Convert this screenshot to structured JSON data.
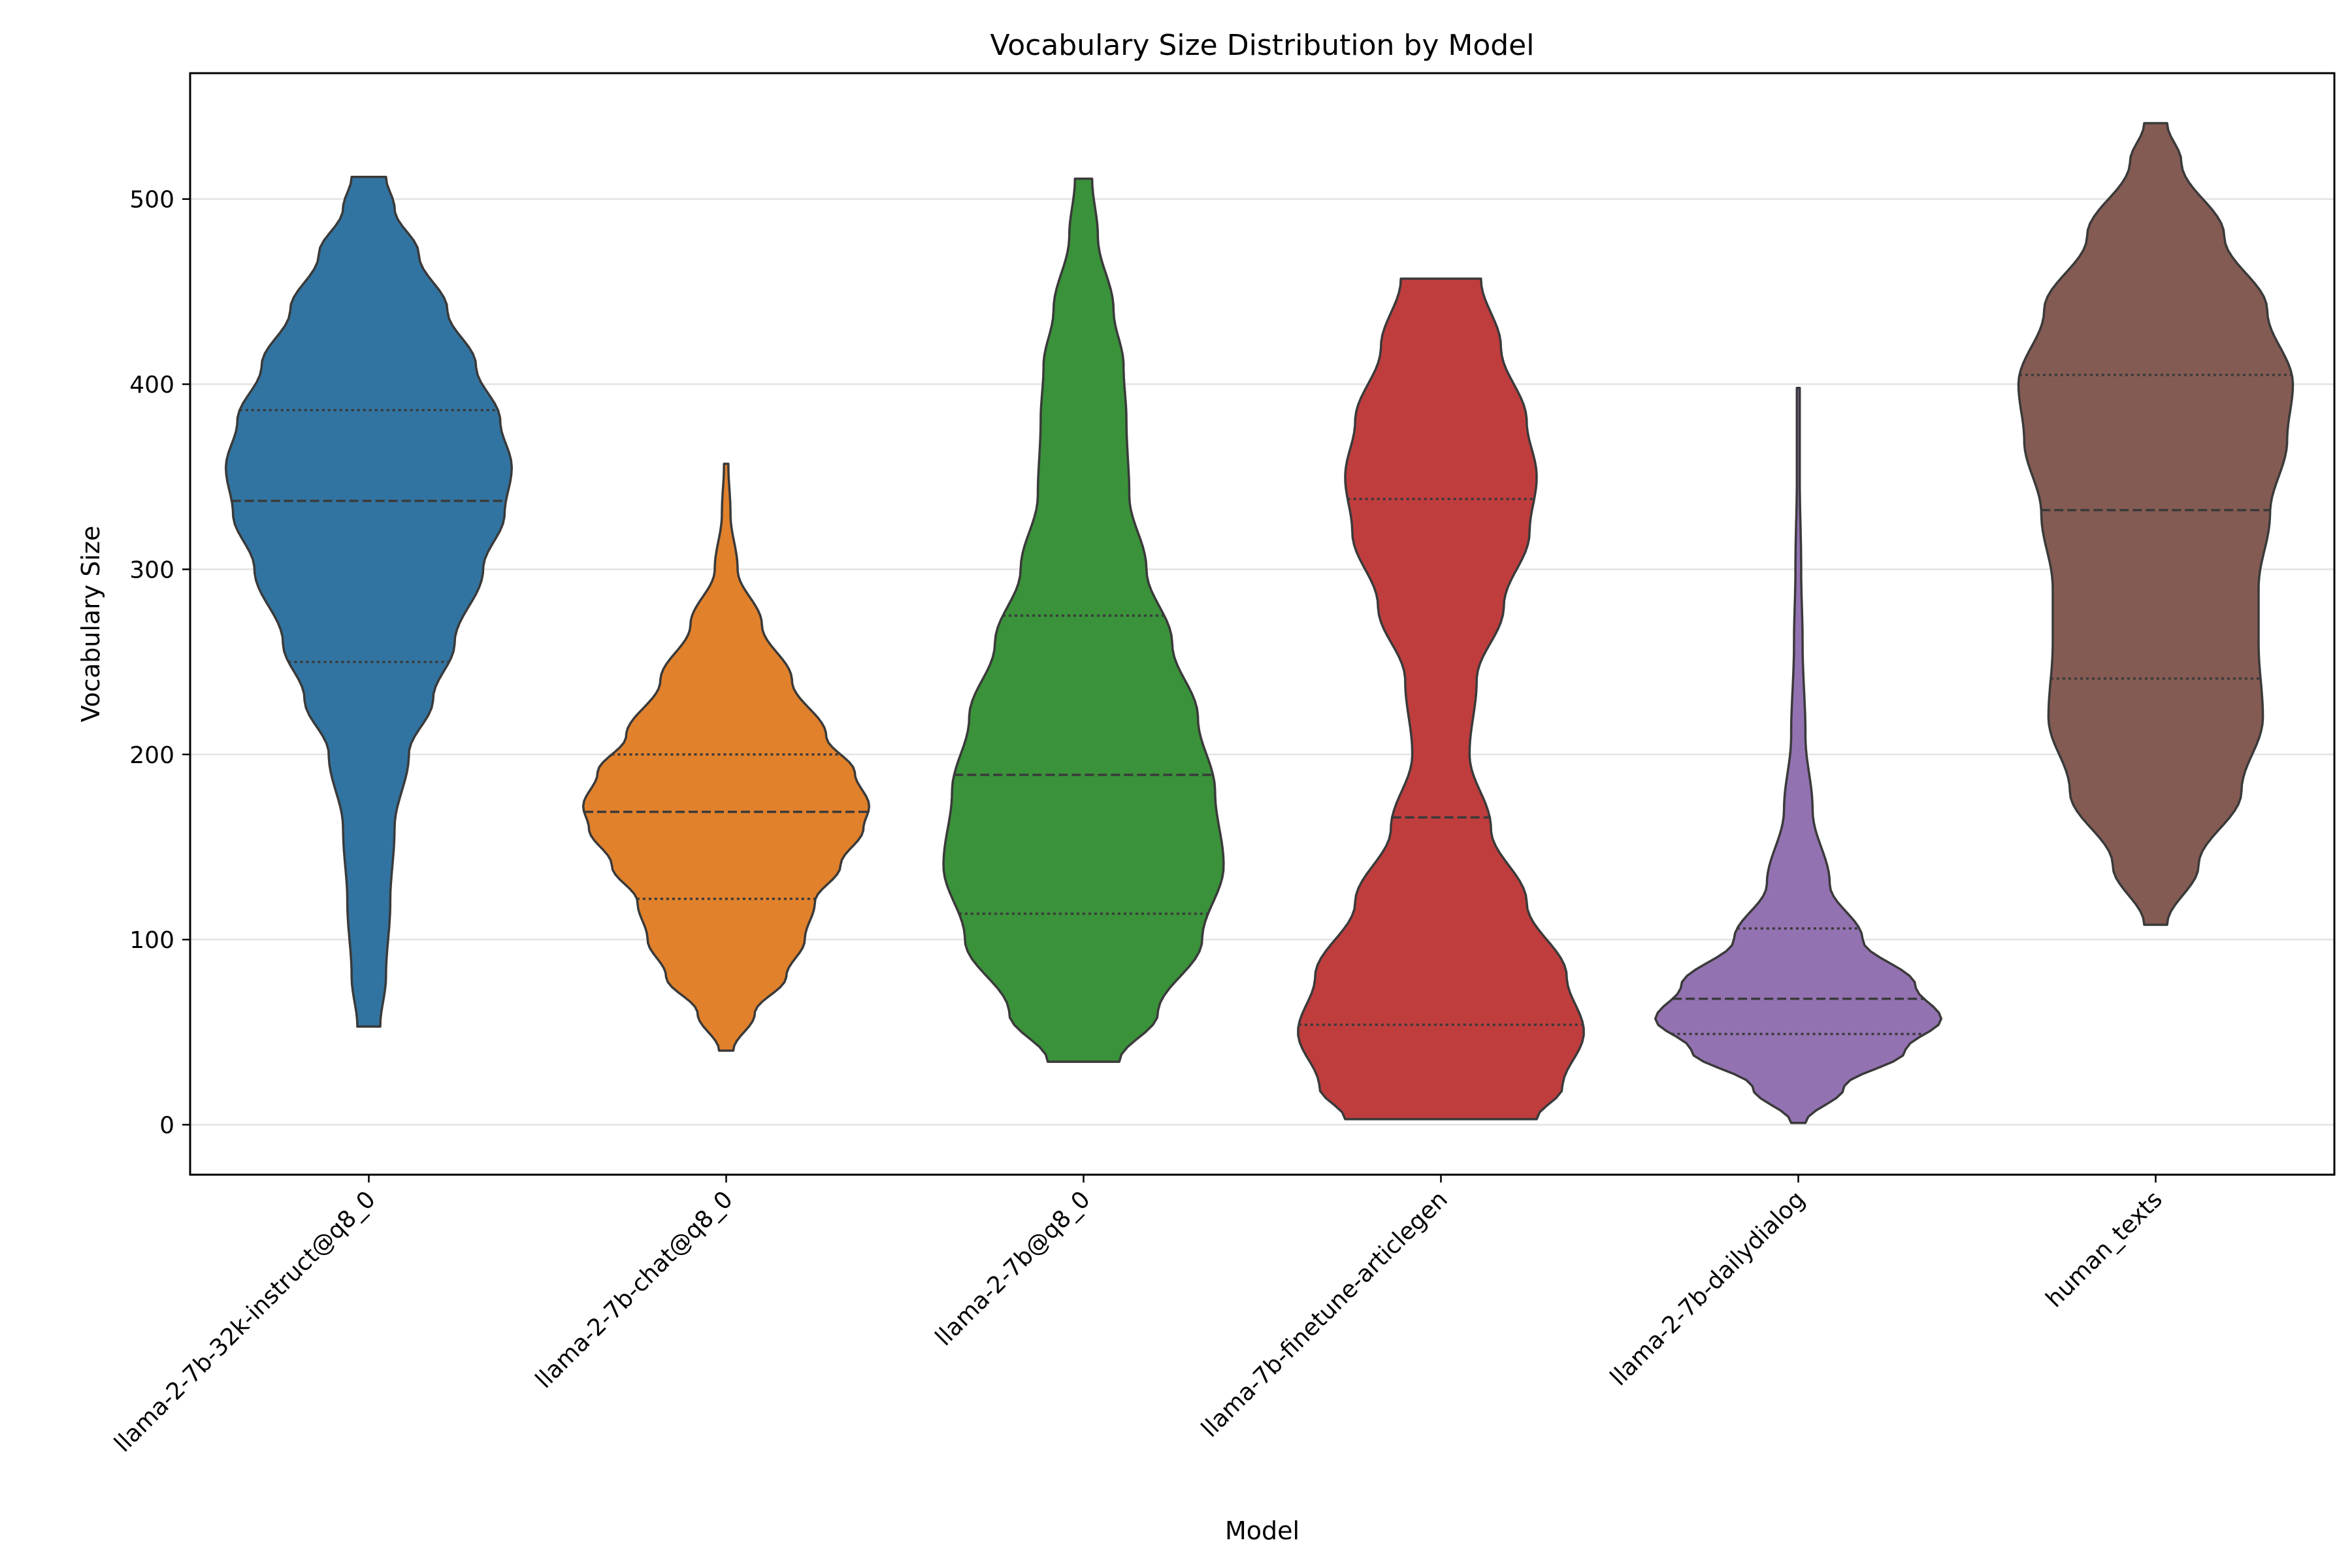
{
  "chart_data": {
    "type": "violin",
    "title": "Vocabulary Size Distribution by Model",
    "xlabel": "Model",
    "ylabel": "Vocabulary Size",
    "ylim": [
      -27,
      568
    ],
    "yticks": [
      0,
      100,
      200,
      300,
      400,
      500
    ],
    "grid": "horizontal",
    "edge_color": "#3a3a3a",
    "series": [
      {
        "category": "llama-2-7b-32k-instruct@q8_0",
        "color": "#3274a1",
        "min": 53,
        "max": 512,
        "quartiles": [
          250,
          337,
          386
        ],
        "density": [
          [
            53,
            0.08
          ],
          [
            80,
            0.12
          ],
          [
            120,
            0.15
          ],
          [
            160,
            0.18
          ],
          [
            200,
            0.28
          ],
          [
            230,
            0.45
          ],
          [
            260,
            0.6
          ],
          [
            300,
            0.8
          ],
          [
            330,
            0.95
          ],
          [
            355,
            1.0
          ],
          [
            380,
            0.92
          ],
          [
            410,
            0.75
          ],
          [
            440,
            0.55
          ],
          [
            470,
            0.35
          ],
          [
            495,
            0.18
          ],
          [
            512,
            0.12
          ]
        ]
      },
      {
        "category": "llama-2-7b-chat@q8_0",
        "color": "#e1812c",
        "min": 40,
        "max": 357,
        "quartiles": [
          122,
          169,
          200
        ],
        "density": [
          [
            40,
            0.05
          ],
          [
            60,
            0.2
          ],
          [
            80,
            0.42
          ],
          [
            100,
            0.55
          ],
          [
            120,
            0.62
          ],
          [
            140,
            0.8
          ],
          [
            160,
            0.96
          ],
          [
            172,
            1.0
          ],
          [
            190,
            0.9
          ],
          [
            210,
            0.7
          ],
          [
            240,
            0.46
          ],
          [
            270,
            0.25
          ],
          [
            300,
            0.08
          ],
          [
            330,
            0.03
          ],
          [
            357,
            0.015
          ]
        ]
      },
      {
        "category": "llama-2-7b@q8_0",
        "color": "#3a923a",
        "min": 34,
        "max": 511,
        "quartiles": [
          114,
          189,
          275
        ],
        "density": [
          [
            34,
            0.25
          ],
          [
            60,
            0.52
          ],
          [
            100,
            0.83
          ],
          [
            140,
            0.98
          ],
          [
            180,
            0.92
          ],
          [
            220,
            0.8
          ],
          [
            260,
            0.62
          ],
          [
            300,
            0.44
          ],
          [
            340,
            0.32
          ],
          [
            380,
            0.3
          ],
          [
            410,
            0.28
          ],
          [
            440,
            0.21
          ],
          [
            480,
            0.1
          ],
          [
            511,
            0.06
          ]
        ]
      },
      {
        "category": "llama-7b-finetune-articlegen",
        "color": "#c03d3e",
        "min": 3,
        "max": 457,
        "quartiles": [
          54,
          166,
          338
        ],
        "density": [
          [
            3,
            0.67
          ],
          [
            20,
            0.85
          ],
          [
            50,
            1.0
          ],
          [
            80,
            0.88
          ],
          [
            120,
            0.6
          ],
          [
            160,
            0.35
          ],
          [
            200,
            0.2
          ],
          [
            240,
            0.25
          ],
          [
            280,
            0.44
          ],
          [
            320,
            0.62
          ],
          [
            350,
            0.67
          ],
          [
            380,
            0.6
          ],
          [
            420,
            0.42
          ],
          [
            457,
            0.28
          ]
        ]
      },
      {
        "category": "llama-2-7b-dailydialog",
        "color": "#9372b2",
        "min": 1,
        "max": 398,
        "quartiles": [
          49,
          68,
          106
        ],
        "density": [
          [
            1,
            0.05
          ],
          [
            20,
            0.32
          ],
          [
            40,
            0.75
          ],
          [
            57,
            1.0
          ],
          [
            75,
            0.82
          ],
          [
            100,
            0.45
          ],
          [
            130,
            0.22
          ],
          [
            170,
            0.1
          ],
          [
            210,
            0.05
          ],
          [
            260,
            0.03
          ],
          [
            300,
            0.02
          ],
          [
            350,
            0.01
          ],
          [
            398,
            0.01
          ]
        ]
      },
      {
        "category": "human_texts",
        "color": "#845b53",
        "min": 108,
        "max": 541,
        "quartiles": [
          241,
          332,
          405
        ],
        "density": [
          [
            108,
            0.08
          ],
          [
            140,
            0.3
          ],
          [
            180,
            0.6
          ],
          [
            220,
            0.75
          ],
          [
            260,
            0.72
          ],
          [
            290,
            0.72
          ],
          [
            330,
            0.8
          ],
          [
            370,
            0.92
          ],
          [
            400,
            0.96
          ],
          [
            440,
            0.78
          ],
          [
            480,
            0.48
          ],
          [
            520,
            0.18
          ],
          [
            541,
            0.08
          ]
        ]
      }
    ]
  }
}
